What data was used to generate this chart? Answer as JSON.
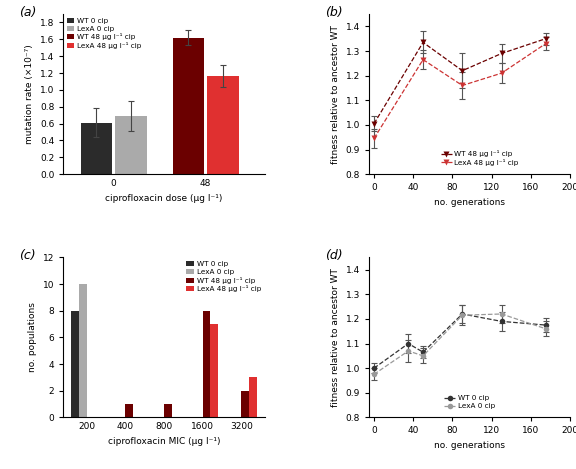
{
  "panel_a": {
    "bar_values": [
      0.61,
      0.69,
      1.62,
      1.17
    ],
    "bar_errors": [
      0.17,
      0.18,
      0.09,
      0.13
    ],
    "colors": [
      "#2b2b2b",
      "#aaaaaa",
      "#6b0000",
      "#e03030"
    ],
    "group_labels": [
      "0",
      "48"
    ],
    "ylim": [
      0,
      1.9
    ],
    "yticks": [
      0.0,
      0.2,
      0.4,
      0.6,
      0.8,
      1.0,
      1.2,
      1.4,
      1.6,
      1.8
    ],
    "ylabel": "mutation rate (×10⁻⁷)",
    "xlabel": "ciprofloxacin dose (µg l⁻¹)",
    "legend_labels": [
      "WT 0 cip",
      "LexA 0 cip",
      "WT 48 µg l⁻¹ cip",
      "LexA 48 µg l⁻¹ cip"
    ],
    "legend_colors": [
      "#2b2b2b",
      "#aaaaaa",
      "#6b0000",
      "#e03030"
    ]
  },
  "panel_b": {
    "x": [
      0,
      50,
      90,
      130,
      175
    ],
    "WT_y": [
      1.005,
      1.335,
      1.22,
      1.29,
      1.35
    ],
    "WT_err": [
      0.03,
      0.045,
      0.07,
      0.04,
      0.025
    ],
    "LexA_y": [
      0.945,
      1.265,
      1.16,
      1.21,
      1.33
    ],
    "LexA_err": [
      0.04,
      0.04,
      0.055,
      0.04,
      0.025
    ],
    "ylim": [
      0.8,
      1.45
    ],
    "yticks": [
      0.8,
      0.9,
      1.0,
      1.1,
      1.2,
      1.3,
      1.4
    ],
    "ylabel": "fitness relative to ancestor WT",
    "xlabel": "no. generations",
    "xlim": [
      -5,
      200
    ],
    "xticks": [
      0,
      20,
      40,
      60,
      80,
      100,
      120,
      140,
      160,
      180,
      200
    ],
    "WT_color": "#6b0000",
    "LexA_color": "#cc3333",
    "legend_labels": [
      "WT 48 µg l⁻¹ cip",
      "LexA 48 µg l⁻¹ cip"
    ]
  },
  "panel_c": {
    "categories": [
      200,
      400,
      800,
      1600,
      3200
    ],
    "WT_0": [
      8,
      0,
      0,
      0,
      0
    ],
    "LexA_0": [
      10,
      0,
      0,
      0,
      0
    ],
    "WT_48": [
      0,
      1,
      1,
      8,
      2
    ],
    "LexA_48": [
      0,
      0,
      0,
      7,
      3
    ],
    "colors": {
      "WT_0": "#2b2b2b",
      "LexA_0": "#aaaaaa",
      "WT_48": "#6b0000",
      "LexA_48": "#e03030"
    },
    "ylim": [
      0,
      12
    ],
    "yticks": [
      0,
      2,
      4,
      6,
      8,
      10,
      12
    ],
    "ylabel": "no. populations",
    "xlabel": "ciprofloxacin MIC (µg l⁻¹)",
    "legend_labels": [
      "WT 0 cip",
      "LexA 0 cip",
      "WT 48 µg l⁻¹ cip",
      "LexA 48 µg l⁻¹ cip"
    ],
    "legend_colors": [
      "#2b2b2b",
      "#aaaaaa",
      "#6b0000",
      "#e03030"
    ]
  },
  "panel_d": {
    "x": [
      0,
      35,
      50,
      90,
      130,
      175
    ],
    "WT_y": [
      1.0,
      1.1,
      1.065,
      1.22,
      1.19,
      1.175
    ],
    "WT_err": [
      0.02,
      0.04,
      0.025,
      0.035,
      0.04,
      0.03
    ],
    "LexA_y": [
      0.975,
      1.07,
      1.05,
      1.215,
      1.22,
      1.16
    ],
    "LexA_err": [
      0.025,
      0.045,
      0.03,
      0.04,
      0.035,
      0.03
    ],
    "ylim": [
      0.8,
      1.45
    ],
    "yticks": [
      0.8,
      0.9,
      1.0,
      1.1,
      1.2,
      1.3,
      1.4
    ],
    "ylabel": "fitness relative to ancestor WT",
    "xlabel": "no. generations",
    "xlim": [
      -5,
      200
    ],
    "xticks": [
      0,
      20,
      40,
      60,
      80,
      100,
      120,
      140,
      160,
      180,
      200
    ],
    "WT_color": "#333333",
    "LexA_color": "#999999",
    "legend_labels": [
      "WT 0 cip",
      "LexA 0 cip"
    ]
  }
}
